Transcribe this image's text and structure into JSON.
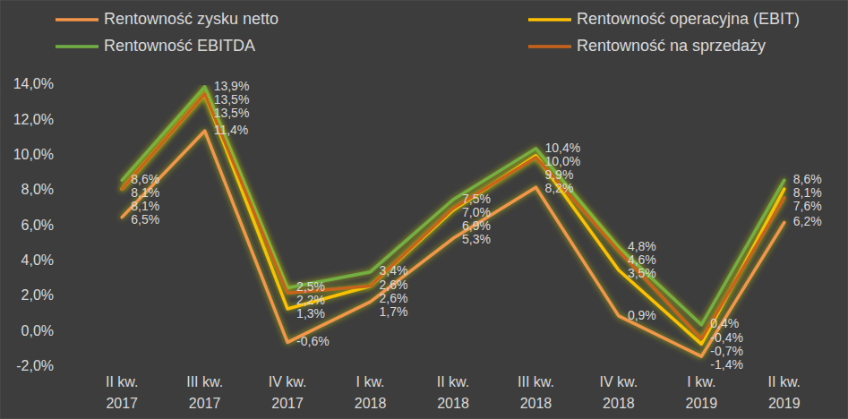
{
  "chart_data": {
    "type": "line",
    "categories": [
      "II kw.\n2017",
      "III kw.\n2017",
      "IV kw.\n2017",
      "I kw.\n2018",
      "II kw.\n2018",
      "III kw.\n2018",
      "IV kw.\n2018",
      "I kw.\n2019",
      "II kw.\n2019"
    ],
    "series": [
      {
        "name": "Rentowność zysku netto",
        "color": "#F4964A",
        "values": [
          6.5,
          11.4,
          -0.6,
          1.7,
          5.3,
          8.2,
          0.9,
          -1.4,
          6.2
        ],
        "value_labels": [
          "6,5%",
          "11,4%",
          "-0,6%",
          "1,7%",
          "5,3%",
          "8,2%",
          "0,9%",
          "-1,4%",
          "6,2%"
        ]
      },
      {
        "name": "Rentowność operacyjna (EBIT)",
        "color": "#FFC000",
        "values": [
          8.1,
          13.5,
          1.3,
          2.6,
          6.9,
          10.0,
          3.5,
          -0.7,
          8.1
        ],
        "value_labels": [
          "8,1%",
          "13,5%",
          "1,3%",
          "2,6%",
          "6,9%",
          "10,0%",
          "3,5%",
          "-0,7%",
          "8,1%"
        ]
      },
      {
        "name": "Rentowność EBITDA",
        "color": "#72B043",
        "values": [
          8.6,
          13.9,
          2.5,
          3.4,
          7.5,
          10.4,
          4.8,
          0.4,
          8.6
        ],
        "value_labels": [
          "8,6%",
          "13,9%",
          "2,5%",
          "3,4%",
          "7,5%",
          "10,4%",
          "4,8%",
          "0,4%",
          "8,6%"
        ]
      },
      {
        "name": "Rentowność na sprzedaży",
        "color": "#C9621A",
        "values": [
          8.1,
          13.5,
          2.2,
          2.6,
          7.0,
          9.9,
          4.6,
          -0.4,
          7.6
        ],
        "value_labels": [
          "8,1%",
          "13,5%",
          "2,2%",
          "2,6%",
          "7,0%",
          "9,9%",
          "4,6%",
          "-0,4%",
          "7,6%"
        ]
      }
    ],
    "ylim": [
      -2,
      14
    ],
    "yticks": [
      {
        "value": -2,
        "label": "-2,0%"
      },
      {
        "value": 0,
        "label": "0,0%"
      },
      {
        "value": 2,
        "label": "2,0%"
      },
      {
        "value": 4,
        "label": "4,0%"
      },
      {
        "value": 6,
        "label": "6,0%"
      },
      {
        "value": 8,
        "label": "8,0%"
      },
      {
        "value": 10,
        "label": "10,0%"
      },
      {
        "value": 12,
        "label": "12,0%"
      },
      {
        "value": 14,
        "label": "14,0%"
      }
    ],
    "grid": false,
    "legend": "top",
    "data_labels": true
  }
}
